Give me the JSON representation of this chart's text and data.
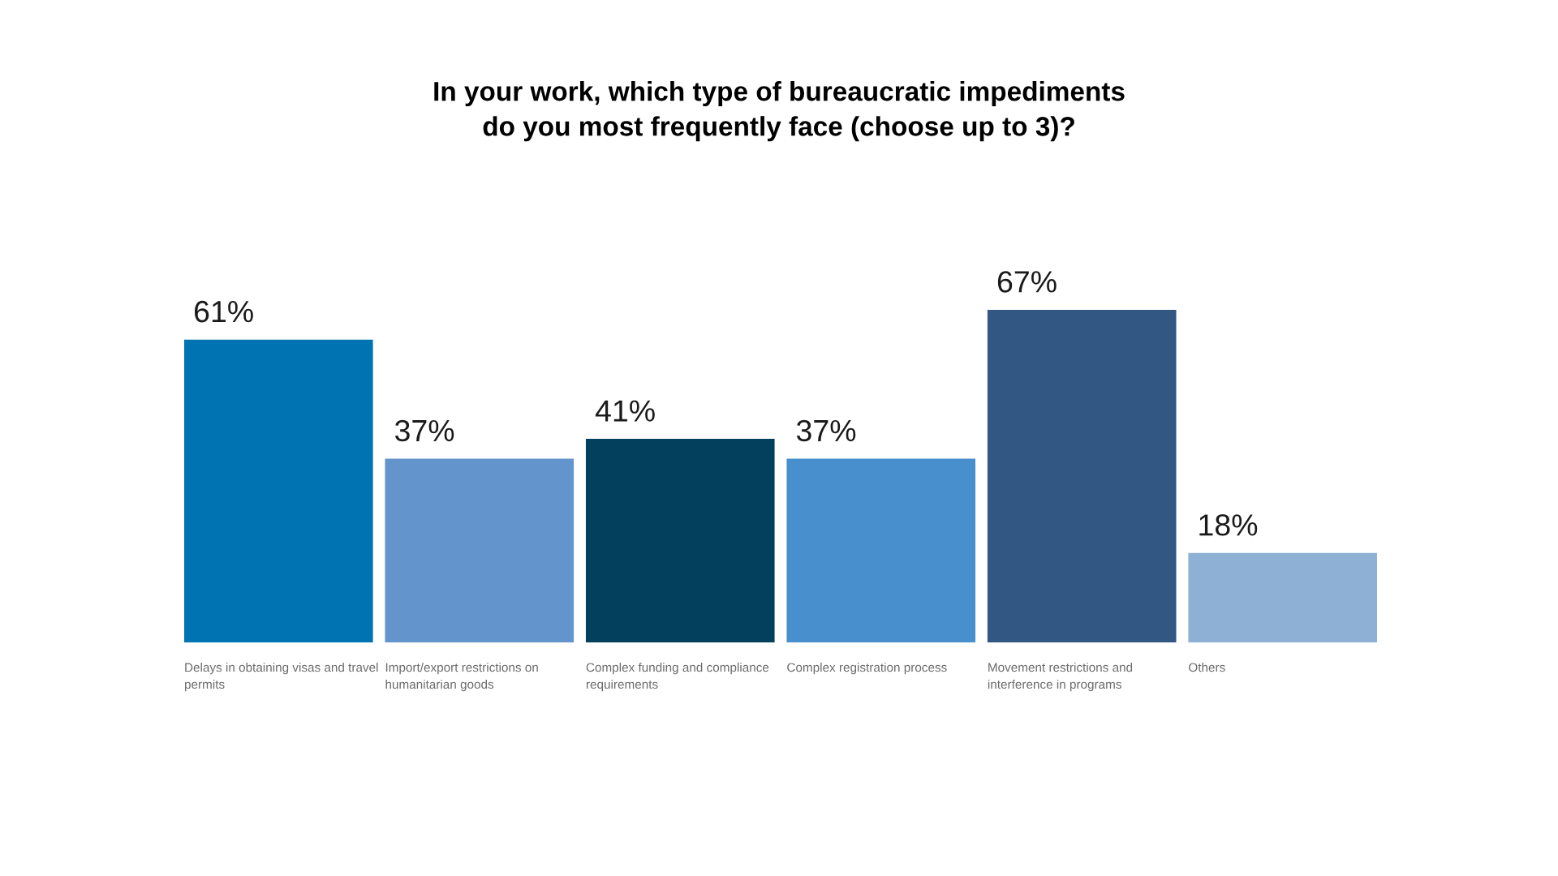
{
  "chart_data": {
    "type": "bar",
    "title": "In your work, which type of bureaucratic impediments\ndo you most frequently face (choose up to 3)?",
    "categories": [
      "Delays in obtaining visas and travel\npermits",
      "Import/export restrictions on\nhumanitarian goods",
      "Complex funding and compliance\nrequirements",
      "Complex registration process",
      "Movement restrictions and\ninterference in programs",
      "Others"
    ],
    "values": [
      61,
      37,
      41,
      37,
      67,
      18
    ],
    "colors": [
      "#0074b3",
      "#6395cc",
      "#02405e",
      "#4890cd",
      "#325783",
      "#8eb0d4"
    ],
    "value_labels": [
      "61%",
      "37%",
      "41%",
      "37%",
      "67%",
      "18%"
    ]
  }
}
